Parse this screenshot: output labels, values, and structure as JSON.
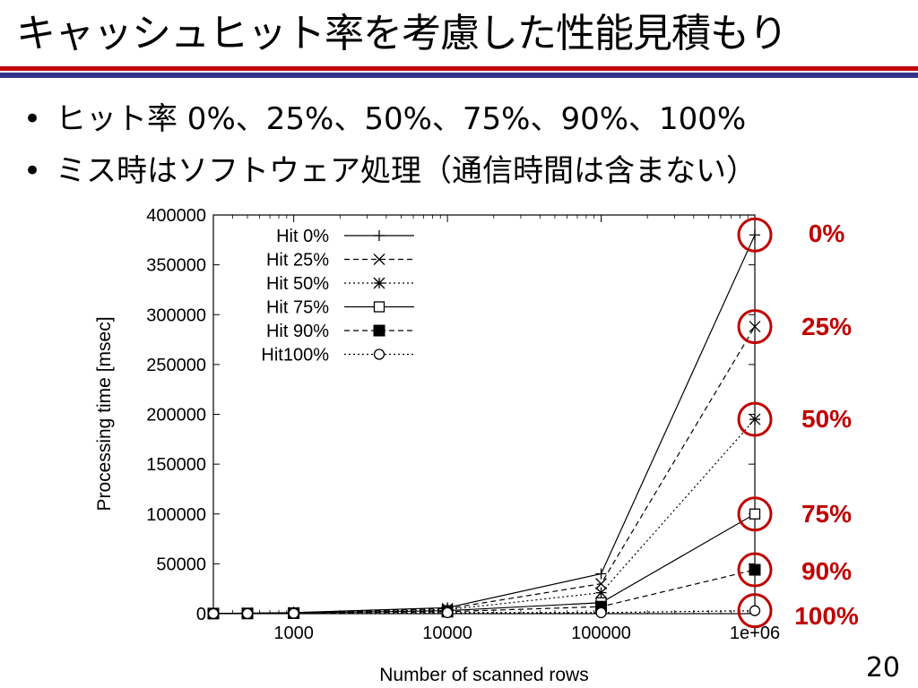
{
  "slide": {
    "title": "キャッシュヒット率を考慮した性能見積もり",
    "bullets": [
      "ヒット率 0%、25%、50%、75%、90%、100%",
      "ミス時はソフトウェア処理（通信時間は含まない）"
    ],
    "page_number": "20"
  },
  "chart_data": {
    "type": "line",
    "title": "",
    "xlabel": "Number of scanned rows",
    "ylabel": "Processing time [msec]",
    "x_scale": "log",
    "xlim": [
      300,
      1000000
    ],
    "ylim": [
      0,
      400000
    ],
    "x_ticks": [
      1000,
      10000,
      100000,
      1000000
    ],
    "x_tick_labels": [
      "1000",
      "10000",
      "100000",
      "1e+06"
    ],
    "y_ticks": [
      0,
      50000,
      100000,
      150000,
      200000,
      250000,
      300000,
      350000,
      400000
    ],
    "y_tick_labels": [
      "0",
      "50000",
      "100000",
      "150000",
      "200000",
      "250000",
      "300000",
      "350000",
      "400000"
    ],
    "grid": false,
    "legend_position": "top-left",
    "x": [
      300,
      500,
      1000,
      10000,
      100000,
      1000000
    ],
    "series": [
      {
        "name": "Hit  0%",
        "marker": "plus",
        "dash": "solid",
        "values": [
          250,
          500,
          1000,
          6000,
          40000,
          380000
        ]
      },
      {
        "name": "Hit 25%",
        "marker": "cross",
        "dash": "dashed",
        "values": [
          250,
          450,
          900,
          5000,
          30000,
          288000
        ]
      },
      {
        "name": "Hit 50%",
        "marker": "star",
        "dash": "dotted",
        "values": [
          200,
          400,
          800,
          4000,
          21000,
          195000
        ]
      },
      {
        "name": "Hit 75%",
        "marker": "square-open",
        "dash": "solid",
        "values": [
          150,
          300,
          700,
          3000,
          11000,
          100000
        ]
      },
      {
        "name": "Hit 90%",
        "marker": "square-filled",
        "dash": "dashed",
        "values": [
          100,
          200,
          500,
          2000,
          7000,
          44000
        ]
      },
      {
        "name": "Hit100%",
        "marker": "circle-open",
        "dash": "dotted",
        "values": [
          50,
          100,
          300,
          1000,
          1000,
          3000
        ]
      }
    ],
    "annotations": [
      {
        "label": "0%",
        "series_index": 0
      },
      {
        "label": "25%",
        "series_index": 1
      },
      {
        "label": "50%",
        "series_index": 2
      },
      {
        "label": "75%",
        "series_index": 3
      },
      {
        "label": "90%",
        "series_index": 4
      },
      {
        "label": "100%",
        "series_index": 5
      }
    ],
    "annotation_color": "#c00000"
  }
}
